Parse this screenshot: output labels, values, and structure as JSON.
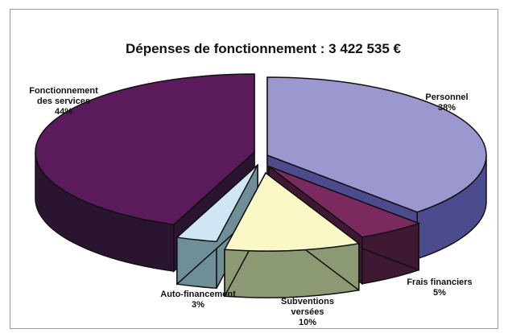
{
  "chart_data": {
    "type": "pie",
    "title": "Dépenses de fonctionnement : 3 422 535 €",
    "slices": [
      {
        "name": "Personnel",
        "percent_label": "38%",
        "value": 38,
        "color": "#9b98cf",
        "side_color": "#4c4b8e"
      },
      {
        "name": "Frais financiers",
        "percent_label": "5%",
        "value": 5,
        "color": "#7a2a5e",
        "side_color": "#3f1834"
      },
      {
        "name": "Subventions versées",
        "percent_label": "10%",
        "value": 10,
        "color": "#fbf8c8",
        "side_color": "#8c9a74"
      },
      {
        "name": "Auto-financement",
        "percent_label": "3%",
        "value": 3,
        "color": "#cfe6f4",
        "side_color": "#6f8f98"
      },
      {
        "name": "Fonctionnement des services",
        "percent_label": "44%",
        "value": 44,
        "color": "#5a1a5c",
        "side_color": "#2a1430"
      }
    ]
  },
  "labels": {
    "fonctionnement": {
      "line1": "Fonctionnement",
      "line2": "des services",
      "pct": "44%"
    },
    "personnel": {
      "line1": "Personnel",
      "pct": "38%"
    },
    "frais": {
      "line1": "Frais financiers",
      "pct": "5%"
    },
    "subventions": {
      "line1": "Subventions",
      "line2": "versées",
      "pct": "10%"
    },
    "auto": {
      "line1": "Auto-financement",
      "pct": "3%"
    }
  }
}
